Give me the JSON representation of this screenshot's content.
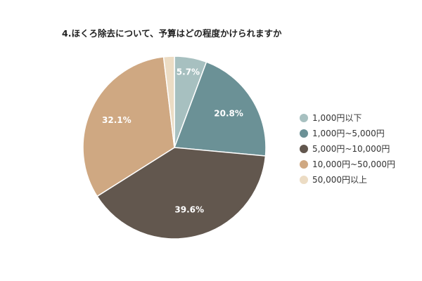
{
  "chart_data": {
    "type": "pie",
    "title": "4.ほくろ除去について、予算はどの程度かけられますか",
    "categories": [
      "1,000円以下",
      "1,000円~5,000円",
      "5,000円~10,000円",
      "10,000円~50,000円",
      "50,000円以上"
    ],
    "values": [
      5.7,
      20.8,
      39.6,
      32.1,
      1.9
    ],
    "value_labels": [
      "5.7%",
      "20.8%",
      "39.6%",
      "32.1%",
      ""
    ],
    "colors": [
      "#a7c0c0",
      "#6b9196",
      "#62574e",
      "#cfa882",
      "#ecdcc4"
    ],
    "legend_position": "right"
  }
}
